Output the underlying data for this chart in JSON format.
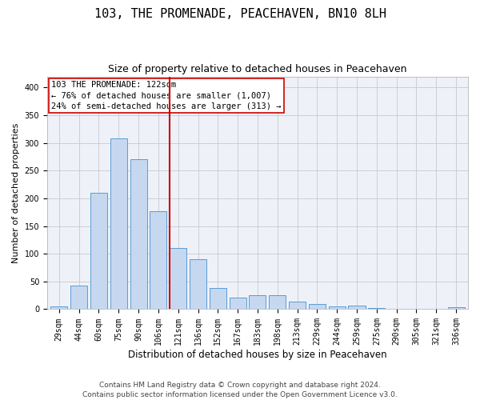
{
  "title": "103, THE PROMENADE, PEACEHAVEN, BN10 8LH",
  "subtitle": "Size of property relative to detached houses in Peacehaven",
  "xlabel": "Distribution of detached houses by size in Peacehaven",
  "ylabel": "Number of detached properties",
  "categories": [
    "29sqm",
    "44sqm",
    "60sqm",
    "75sqm",
    "90sqm",
    "106sqm",
    "121sqm",
    "136sqm",
    "152sqm",
    "167sqm",
    "183sqm",
    "198sqm",
    "213sqm",
    "229sqm",
    "244sqm",
    "259sqm",
    "275sqm",
    "290sqm",
    "305sqm",
    "321sqm",
    "336sqm"
  ],
  "values": [
    5,
    42,
    210,
    308,
    270,
    177,
    110,
    90,
    38,
    21,
    25,
    25,
    14,
    10,
    5,
    6,
    2,
    1,
    1,
    0,
    3
  ],
  "bar_color": "#c5d8f0",
  "bar_edge_color": "#5b9bd5",
  "vline_color": "#cc0000",
  "vline_idx": 6,
  "annotation_text": "103 THE PROMENADE: 122sqm\n← 76% of detached houses are smaller (1,007)\n24% of semi-detached houses are larger (313) →",
  "annotation_box_color": "white",
  "annotation_box_edge_color": "#cc0000",
  "ylim": [
    0,
    420
  ],
  "yticks": [
    0,
    50,
    100,
    150,
    200,
    250,
    300,
    350,
    400
  ],
  "grid_color": "#c8c8d0",
  "background_color": "#eef2f8",
  "footer_text": "Contains HM Land Registry data © Crown copyright and database right 2024.\nContains public sector information licensed under the Open Government Licence v3.0.",
  "title_fontsize": 11,
  "subtitle_fontsize": 9,
  "xlabel_fontsize": 8.5,
  "ylabel_fontsize": 8,
  "tick_fontsize": 7,
  "annotation_fontsize": 7.5,
  "footer_fontsize": 6.5
}
